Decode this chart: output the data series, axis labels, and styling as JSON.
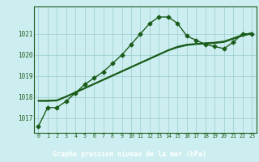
{
  "title": "Graphe pression niveau de la mer (hPa)",
  "bg_color": "#cceeff",
  "plot_bg_color": "#cdeef0",
  "grid_color": "#99cccc",
  "line_color": "#1a5c1a",
  "label_bg": "#2a6b2a",
  "label_fg": "#ffffff",
  "xlim": [
    -0.5,
    23.5
  ],
  "ylim": [
    1016.3,
    1022.3
  ],
  "yticks": [
    1017,
    1018,
    1019,
    1020,
    1021
  ],
  "xticks": [
    0,
    1,
    2,
    3,
    4,
    5,
    6,
    7,
    8,
    9,
    10,
    11,
    12,
    13,
    14,
    15,
    16,
    17,
    18,
    19,
    20,
    21,
    22,
    23
  ],
  "series": [
    {
      "x": [
        0,
        1,
        2,
        3,
        4,
        5,
        6,
        7,
        8,
        9,
        10,
        11,
        12,
        13,
        14,
        15,
        16,
        17,
        18,
        19,
        20,
        21,
        22,
        23
      ],
      "y": [
        1016.6,
        1017.5,
        1017.5,
        1017.8,
        1018.2,
        1018.6,
        1018.9,
        1019.2,
        1019.6,
        1020.0,
        1020.5,
        1021.0,
        1021.5,
        1021.8,
        1021.8,
        1021.5,
        1020.9,
        1020.7,
        1020.5,
        1020.4,
        1020.3,
        1020.6,
        1021.0,
        1021.0
      ],
      "marker": "D",
      "marker_size": 2.5,
      "linewidth": 1.0,
      "zorder": 5,
      "dashed": false
    },
    {
      "x": [
        0,
        1,
        2,
        3,
        4,
        5,
        6,
        7,
        8,
        9,
        10,
        11,
        12,
        13,
        14,
        15,
        16,
        17,
        18,
        19,
        20,
        21,
        22,
        23
      ],
      "y": [
        1017.8,
        1017.8,
        1017.82,
        1018.0,
        1018.2,
        1018.4,
        1018.6,
        1018.8,
        1019.0,
        1019.2,
        1019.4,
        1019.6,
        1019.8,
        1020.0,
        1020.2,
        1020.35,
        1020.45,
        1020.5,
        1020.52,
        1020.55,
        1020.6,
        1020.75,
        1020.9,
        1021.0
      ],
      "marker": null,
      "marker_size": 0,
      "linewidth": 0.9,
      "zorder": 3,
      "dashed": false
    },
    {
      "x": [
        0,
        1,
        2,
        3,
        4,
        5,
        6,
        7,
        8,
        9,
        10,
        11,
        12,
        13,
        14,
        15,
        16,
        17,
        18,
        19,
        20,
        21,
        22,
        23
      ],
      "y": [
        1017.82,
        1017.82,
        1017.84,
        1018.02,
        1018.22,
        1018.42,
        1018.62,
        1018.82,
        1019.02,
        1019.22,
        1019.42,
        1019.62,
        1019.82,
        1020.02,
        1020.22,
        1020.38,
        1020.48,
        1020.52,
        1020.55,
        1020.58,
        1020.63,
        1020.78,
        1020.93,
        1021.03
      ],
      "marker": null,
      "marker_size": 0,
      "linewidth": 0.9,
      "zorder": 3,
      "dashed": false
    },
    {
      "x": [
        0,
        1,
        2,
        3,
        4,
        5,
        6,
        7,
        8,
        9,
        10,
        11,
        12,
        13,
        14,
        15,
        16,
        17,
        18,
        19,
        20,
        21,
        22,
        23
      ],
      "y": [
        1017.84,
        1017.84,
        1017.86,
        1018.04,
        1018.24,
        1018.44,
        1018.64,
        1018.84,
        1019.04,
        1019.24,
        1019.44,
        1019.64,
        1019.84,
        1020.04,
        1020.24,
        1020.4,
        1020.5,
        1020.54,
        1020.57,
        1020.6,
        1020.65,
        1020.8,
        1020.96,
        1021.05
      ],
      "marker": null,
      "marker_size": 0,
      "linewidth": 0.9,
      "zorder": 3,
      "dashed": false
    }
  ]
}
